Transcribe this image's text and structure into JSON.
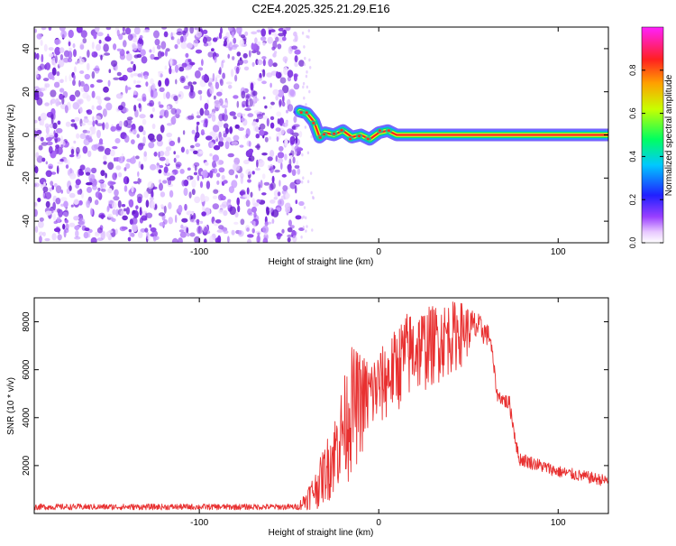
{
  "title": "C2E4.2025.325.21.29.E16",
  "chart_data": [
    {
      "type": "heatmap",
      "xlabel": "Height of straight line (km)",
      "ylabel": "Frequency (Hz)",
      "xlim": [
        -192,
        128
      ],
      "ylim": [
        -50,
        50
      ],
      "x_ticks": [
        -100,
        0,
        100
      ],
      "y_ticks": [
        -40,
        -20,
        0,
        20,
        40
      ],
      "grid": false,
      "noise_region_x": [
        -192,
        -43
      ],
      "signal_track": [
        {
          "x": -44,
          "y": 11
        },
        {
          "x": -40,
          "y": 10
        },
        {
          "x": -36,
          "y": 6
        },
        {
          "x": -33,
          "y": -1
        },
        {
          "x": -30,
          "y": 1
        },
        {
          "x": -25,
          "y": 0
        },
        {
          "x": -20,
          "y": 2
        },
        {
          "x": -15,
          "y": -1
        },
        {
          "x": -10,
          "y": 0
        },
        {
          "x": -5,
          "y": -2
        },
        {
          "x": 0,
          "y": 1
        },
        {
          "x": 5,
          "y": 2
        },
        {
          "x": 10,
          "y": 0
        },
        {
          "x": 20,
          "y": 0
        },
        {
          "x": 128,
          "y": 0
        }
      ],
      "colorbar": {
        "label": "Normalized spectral amplitude",
        "range": [
          0,
          1
        ],
        "ticks": [
          "0.0",
          "0.2",
          "0.4",
          "0.6",
          "0.8"
        ]
      },
      "colors": {
        "noise": "#7a2be0",
        "track_core": "#ff2020",
        "track_edge": "#2a2aff"
      }
    },
    {
      "type": "line",
      "xlabel": "Height of straight line (km)",
      "ylabel": "SNR (10 * v/v)",
      "xlim": [
        -192,
        128
      ],
      "ylim": [
        0,
        9000
      ],
      "x_ticks": [
        -100,
        0,
        100
      ],
      "y_ticks": [
        2000,
        4000,
        6000,
        8000
      ],
      "grid": false,
      "series": [
        {
          "color": "#e83030",
          "envelope": [
            {
              "x": -192,
              "min": 150,
              "max": 400
            },
            {
              "x": -45,
              "min": 150,
              "max": 400
            },
            {
              "x": -35,
              "min": 150,
              "max": 1800
            },
            {
              "x": -25,
              "min": 600,
              "max": 4000
            },
            {
              "x": -15,
              "min": 1500,
              "max": 7000
            },
            {
              "x": -5,
              "min": 3000,
              "max": 6500
            },
            {
              "x": 5,
              "min": 3800,
              "max": 7200
            },
            {
              "x": 15,
              "min": 4500,
              "max": 8400
            },
            {
              "x": 25,
              "min": 5000,
              "max": 8600
            },
            {
              "x": 35,
              "min": 5500,
              "max": 8800
            },
            {
              "x": 45,
              "min": 6000,
              "max": 8900
            },
            {
              "x": 55,
              "min": 7000,
              "max": 8400
            },
            {
              "x": 62,
              "min": 7000,
              "max": 7800
            },
            {
              "x": 66,
              "min": 4700,
              "max": 5200
            },
            {
              "x": 73,
              "min": 4200,
              "max": 4900
            },
            {
              "x": 78,
              "min": 2000,
              "max": 2600
            },
            {
              "x": 100,
              "min": 1500,
              "max": 2000
            },
            {
              "x": 128,
              "min": 1100,
              "max": 1600
            }
          ]
        }
      ]
    }
  ]
}
